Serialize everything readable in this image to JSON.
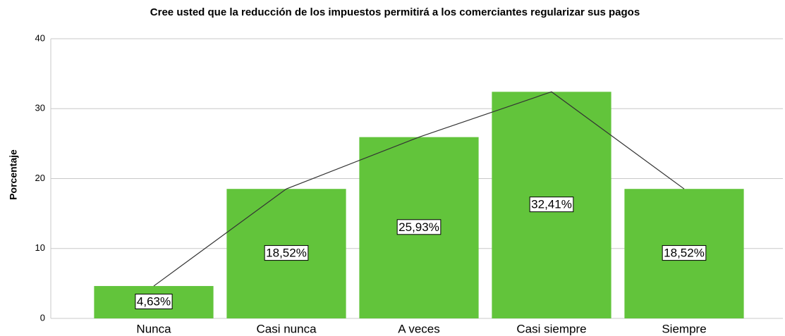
{
  "chart_data": {
    "type": "bar",
    "title": "Cree usted que la reducción de los impuestos permitirá a los comerciantes regularizar sus pagos",
    "ylabel": "Porcentaje",
    "categories": [
      "Nunca",
      "Casi nunca",
      "A veces",
      "Casi siempre",
      "Siempre"
    ],
    "values": [
      4.63,
      18.52,
      25.93,
      32.41,
      18.52
    ],
    "value_labels": [
      "4,63%",
      "18,52%",
      "25,93%",
      "32,41%",
      "18,52%"
    ],
    "color": "#62c43b",
    "line_color": "#333333",
    "ylim": [
      0,
      40
    ],
    "yticks": [
      0,
      10,
      20,
      30,
      40
    ],
    "grid": true
  }
}
